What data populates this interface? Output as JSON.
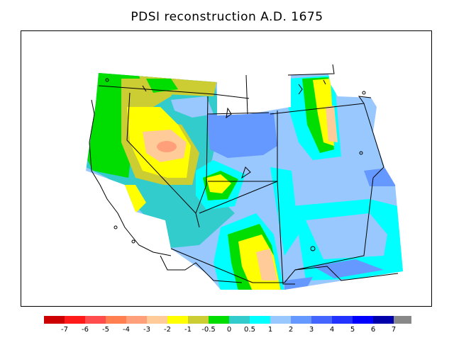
{
  "title": "PDSI reconstruction A.D. 1675",
  "legend": {
    "colors": [
      "#cc0000",
      "#ff1a1a",
      "#ff4d4d",
      "#ff7f50",
      "#ffa07a",
      "#ffcc99",
      "#ffff00",
      "#cccc33",
      "#00dd00",
      "#33cccc",
      "#00ffff",
      "#99c8ff",
      "#6699ff",
      "#4466ff",
      "#2233ff",
      "#0000ff",
      "#0000aa",
      "#888888"
    ],
    "labels": [
      "-7",
      "-6",
      "-5",
      "-4",
      "-3",
      "-2",
      "-1",
      "-0.5",
      "0",
      "0.5",
      "1",
      "2",
      "3",
      "4",
      "5",
      "6",
      "7"
    ]
  }
}
